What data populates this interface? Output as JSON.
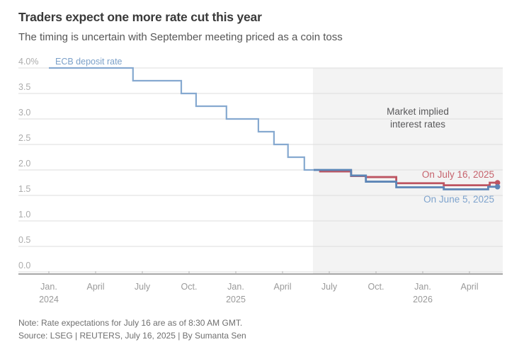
{
  "header": {
    "title": "Traders expect one more rate cut this year",
    "subtitle": "The timing is uncertain with September meeting priced as a coin toss"
  },
  "chart_data": {
    "type": "line",
    "title": "Traders expect one more rate cut this year",
    "subtitle": "The timing is uncertain with September meeting priced as a coin toss",
    "grid": "horizontal",
    "y_axis": {
      "lim": [
        0,
        4.0
      ],
      "unit": "%",
      "ticks": [
        {
          "v": 4.0,
          "label": "4.0%"
        },
        {
          "v": 3.5,
          "label": "3.5"
        },
        {
          "v": 3.0,
          "label": "3.0"
        },
        {
          "v": 2.5,
          "label": "2.5"
        },
        {
          "v": 2.0,
          "label": "2.0"
        },
        {
          "v": 1.5,
          "label": "1.5"
        },
        {
          "v": 1.0,
          "label": "1.0"
        },
        {
          "v": 0.5,
          "label": "0.5"
        },
        {
          "v": 0.0,
          "label": "0.0"
        }
      ]
    },
    "x_axis": {
      "lim_months": [
        0,
        29.1
      ],
      "ticks": [
        {
          "month": 0,
          "label": "Jan.",
          "year": "2024"
        },
        {
          "month": 3,
          "label": "April"
        },
        {
          "month": 6,
          "label": "July"
        },
        {
          "month": 9,
          "label": "Oct."
        },
        {
          "month": 12,
          "label": "Jan.",
          "year": "2025"
        },
        {
          "month": 15,
          "label": "April"
        },
        {
          "month": 18,
          "label": "July"
        },
        {
          "month": 21,
          "label": "Oct."
        },
        {
          "month": 24,
          "label": "Jan.",
          "year": "2026"
        },
        {
          "month": 27,
          "label": "April"
        }
      ]
    },
    "region": {
      "start_month": 16.95,
      "fill": "#f3f3f3",
      "label_line1": "Market implied",
      "label_line2": "interest rates"
    },
    "series": [
      {
        "name": "ECB deposit rate",
        "color": "#86a9d0",
        "label_color": "#7ba0c9",
        "width": 2.2,
        "dot": false,
        "steps": [
          [
            0,
            4.0
          ],
          [
            5.4,
            3.75
          ],
          [
            8.5,
            3.5
          ],
          [
            9.45,
            3.25
          ],
          [
            11.4,
            3.0
          ],
          [
            13.45,
            2.75
          ],
          [
            14.45,
            2.5
          ],
          [
            15.35,
            2.25
          ],
          [
            16.4,
            2.0
          ]
        ],
        "end_month": 17.4
      },
      {
        "name": "On July 16, 2025",
        "color": "#bd5461",
        "label_color": "#c6636d",
        "width": 2.8,
        "dot": true,
        "steps": [
          [
            17.35,
            1.97
          ],
          [
            19.4,
            1.88
          ],
          [
            20.35,
            1.86
          ],
          [
            22.3,
            1.74
          ],
          [
            25.35,
            1.7
          ],
          [
            28.3,
            1.75
          ]
        ],
        "end_month": 28.8
      },
      {
        "name": "On June 5, 2025",
        "color": "#5c85b6",
        "label_color": "#7ea3cd",
        "width": 2.8,
        "dot": true,
        "steps": [
          [
            17.0,
            2.0
          ],
          [
            19.4,
            1.89
          ],
          [
            20.35,
            1.77
          ],
          [
            22.3,
            1.66
          ],
          [
            25.35,
            1.62
          ],
          [
            28.2,
            1.67
          ]
        ],
        "end_month": 28.8
      }
    ]
  },
  "footer": {
    "note": "Note: Rate expectations for July 16 are as of 8:30 AM GMT.",
    "source": "Source: LSEG | REUTERS, July 16, 2025 | By Sumanta Sen"
  }
}
